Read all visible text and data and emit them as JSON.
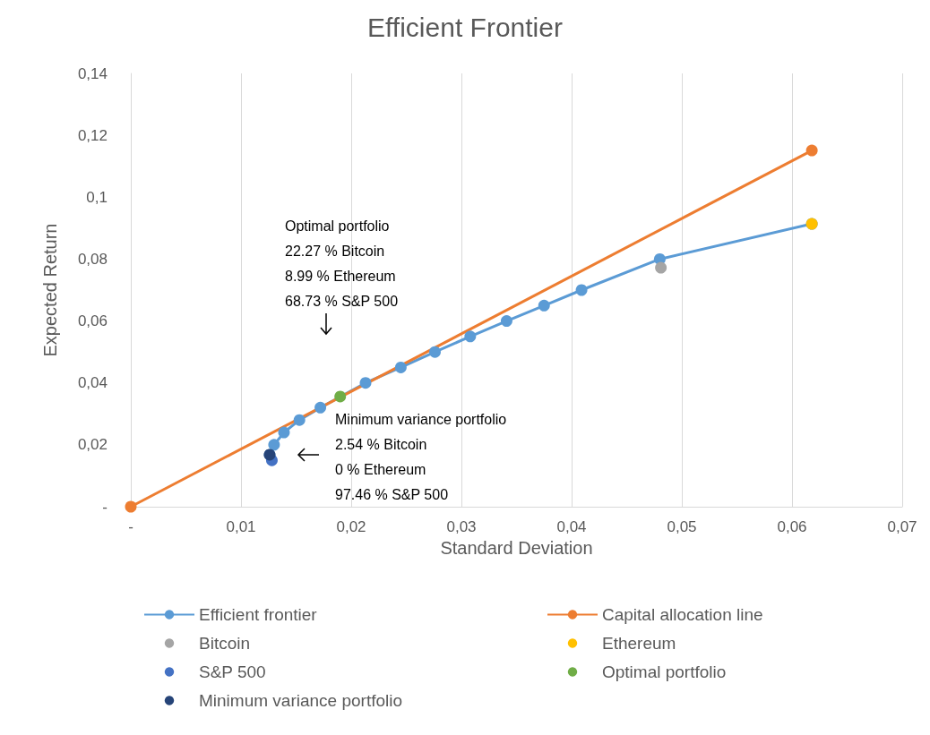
{
  "chart_data": {
    "type": "line",
    "title": "Efficient Frontier",
    "xlabel": "Standard Deviation",
    "ylabel": "Expected Return",
    "xlim": [
      0,
      0.07
    ],
    "xticks": [
      {
        "value": 0,
        "label": "-"
      },
      {
        "value": 0.01,
        "label": "0,01"
      },
      {
        "value": 0.02,
        "label": "0,02"
      },
      {
        "value": 0.03,
        "label": "0,03"
      },
      {
        "value": 0.04,
        "label": "0,04"
      },
      {
        "value": 0.05,
        "label": "0,05"
      },
      {
        "value": 0.06,
        "label": "0,06"
      },
      {
        "value": 0.07,
        "label": "0,07"
      }
    ],
    "ylim": [
      0,
      0.14
    ],
    "yticks": [
      {
        "value": 0,
        "label": "-"
      },
      {
        "value": 0.02,
        "label": "0,02"
      },
      {
        "value": 0.04,
        "label": "0,04"
      },
      {
        "value": 0.06,
        "label": "0,06"
      },
      {
        "value": 0.08,
        "label": "0,08"
      },
      {
        "value": 0.1,
        "label": "0,1"
      },
      {
        "value": 0.12,
        "label": "0,12"
      },
      {
        "value": 0.14,
        "label": "0,14"
      }
    ],
    "grid": "x",
    "legend": "bottom",
    "marker": "circle",
    "series": [
      {
        "name": "Efficient frontier",
        "color": "#5b9bd5",
        "x": [
          0.0126,
          0.013,
          0.0139,
          0.0153,
          0.0172,
          0.0213,
          0.0245,
          0.0276,
          0.0308,
          0.0341,
          0.0375,
          0.0409,
          0.048,
          0.0618
        ],
        "values": [
          0.0168,
          0.02,
          0.024,
          0.028,
          0.032,
          0.04,
          0.045,
          0.05,
          0.055,
          0.06,
          0.065,
          0.07,
          0.08,
          0.0914
        ]
      },
      {
        "name": "Capital allocation line",
        "color": "#ed7d31",
        "x": [
          0,
          0.0618
        ],
        "values": [
          0,
          0.1151
        ]
      },
      {
        "name": "Bitcoin",
        "type": "scatter",
        "color": "#a5a5a5",
        "x": [
          0.0481
        ],
        "values": [
          0.0772
        ]
      },
      {
        "name": "Ethereum",
        "type": "scatter",
        "color": "#ffc000",
        "x": [
          0.0618
        ],
        "values": [
          0.0914
        ]
      },
      {
        "name": "S&P 500",
        "type": "scatter",
        "color": "#4472c4",
        "x": [
          0.0128
        ],
        "values": [
          0.015
        ]
      },
      {
        "name": "Optimal portfolio",
        "type": "scatter",
        "color": "#70ad47",
        "x": [
          0.019
        ],
        "values": [
          0.0356
        ]
      },
      {
        "name": "Minimum variance portfolio",
        "type": "scatter",
        "color": "#264478",
        "x": [
          0.0126
        ],
        "values": [
          0.0168
        ]
      }
    ],
    "annotations": [
      "Optimal portfolio\n22.27 % Bitcoin\n8.99 % Ethereum\n68.73 % S&P 500",
      "Minimum variance portfolio\n2.54 % Bitcoin\n0 % Ethereum\n97.46 % S&P 500"
    ]
  }
}
